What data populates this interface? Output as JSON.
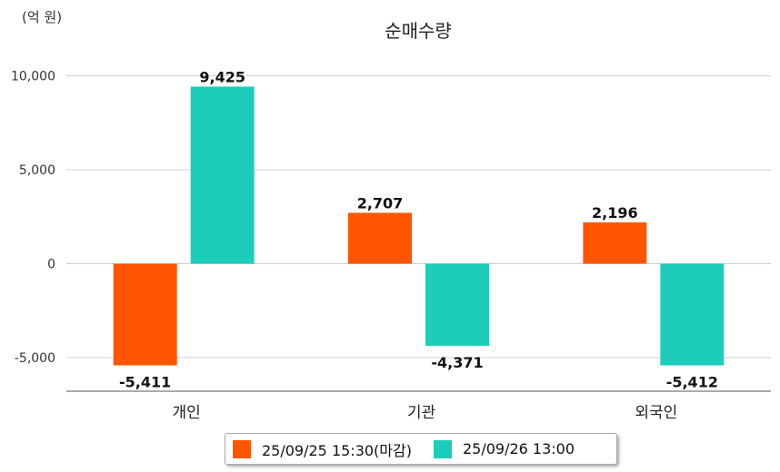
{
  "unit_label": "(억 원)",
  "chart_data": {
    "type": "bar",
    "title": "순매수량",
    "xlabel": "",
    "ylabel": "",
    "ylim": [
      -6800,
      10000
    ],
    "yticks": [
      10000,
      5000,
      0,
      -5000
    ],
    "ytick_labels": [
      "10,000",
      "5,000",
      "0",
      "-5,000"
    ],
    "grid": true,
    "legend_position": "bottom",
    "categories": [
      "개인",
      "기관",
      "외국인"
    ],
    "series": [
      {
        "name": "25/09/25 15:30(마감)",
        "color": "#ff5500",
        "values": [
          -5411,
          2707,
          2196
        ],
        "labels": [
          "-5,411",
          "2,707",
          "2,196"
        ]
      },
      {
        "name": "25/09/26 13:00",
        "color": "#1dcdbb",
        "values": [
          9425,
          -4371,
          -5412
        ],
        "labels": [
          "9,425",
          "-4,371",
          "-5,412"
        ]
      }
    ]
  }
}
